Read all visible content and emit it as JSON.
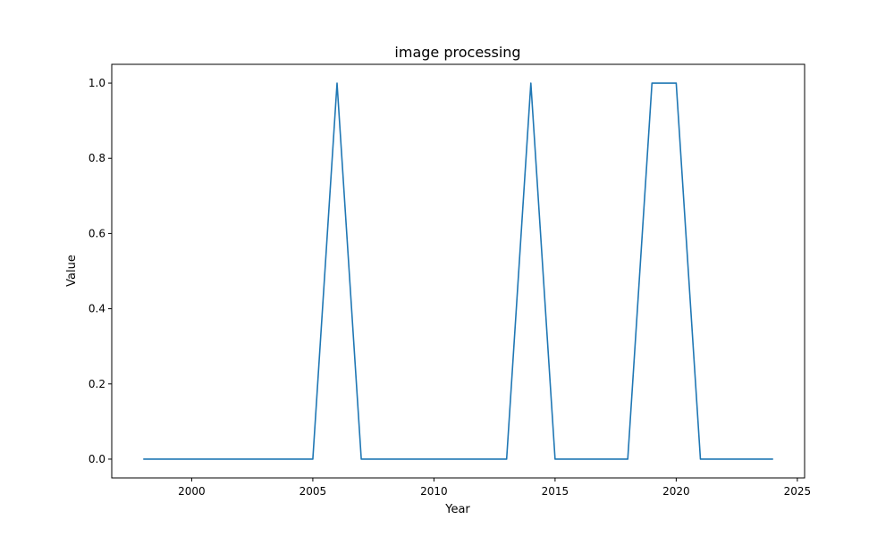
{
  "chart_data": {
    "type": "line",
    "title": "image processing",
    "xlabel": "Year",
    "ylabel": "Value",
    "xlim": [
      1996.7,
      2025.3
    ],
    "ylim": [
      -0.05,
      1.05
    ],
    "xticks": [
      2000,
      2005,
      2010,
      2015,
      2020,
      2025
    ],
    "yticks": [
      0.0,
      0.2,
      0.4,
      0.6,
      0.8,
      1.0
    ],
    "xtick_labels": [
      "2000",
      "2005",
      "2010",
      "2015",
      "2020",
      "2025"
    ],
    "ytick_labels": [
      "0.0",
      "0.2",
      "0.4",
      "0.6",
      "0.8",
      "1.0"
    ],
    "grid": false,
    "series": [
      {
        "color": "#1f77b4",
        "x": [
          1998,
          1999,
          2000,
          2001,
          2002,
          2003,
          2004,
          2005,
          2006,
          2007,
          2008,
          2009,
          2010,
          2011,
          2012,
          2013,
          2014,
          2015,
          2016,
          2017,
          2018,
          2019,
          2020,
          2021,
          2022,
          2023,
          2024
        ],
        "y": [
          0,
          0,
          0,
          0,
          0,
          0,
          0,
          0,
          1,
          0,
          0,
          0,
          0,
          0,
          0,
          0,
          1,
          0,
          0,
          0,
          0,
          1,
          1,
          0,
          0,
          0,
          0
        ]
      }
    ]
  }
}
